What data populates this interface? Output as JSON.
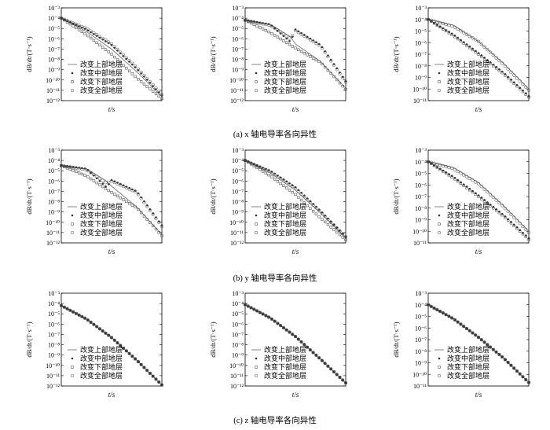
{
  "labels": {
    "xlabel": "t/s",
    "ylabel": "dB/dt/(T·s⁻¹)",
    "legend": [
      "改变上部地层",
      "改变中部地层",
      "改变下部地层",
      "改变全部地层"
    ]
  },
  "captions": [
    "(a) x 轴电导率各向异性",
    "(b) y 轴电导率各向异性",
    "(c) z 轴电导率各向异性"
  ],
  "chart_data": [
    {
      "type": "line",
      "subplot": "a1",
      "ylim_exp": [
        -12,
        -3
      ],
      "x_norm_points": [
        0,
        0.25,
        0.5,
        0.75,
        1
      ],
      "series": [
        {
          "values": [
            -4.0,
            -5.3,
            -7.0,
            -9.2,
            -11.6
          ]
        },
        {
          "values": [
            -4.0,
            -5.1,
            -6.6,
            -8.9,
            -11.5
          ]
        },
        {
          "values": [
            -4.0,
            -5.6,
            -7.5,
            -9.8,
            -11.8
          ]
        },
        {
          "values": [
            -4.0,
            -5.0,
            -6.5,
            -8.8,
            -11.4
          ]
        }
      ]
    },
    {
      "type": "line",
      "subplot": "a2",
      "ylim_exp": [
        -12,
        -3
      ],
      "x_norm_points": [
        0,
        0.25,
        0.45,
        0.5,
        0.75,
        1
      ],
      "series": [
        {
          "values": [
            -4.2,
            -4.6,
            -5.8,
            -6.5,
            -8.2,
            -10.8
          ]
        },
        {
          "values": [
            -4.2,
            -4.6,
            -6.3,
            -5.1,
            -6.6,
            -10.1
          ]
        },
        {
          "values": [
            -4.2,
            -5.4,
            -6.6,
            -6.9,
            -8.3,
            -10.9
          ]
        },
        {
          "values": [
            -4.2,
            -4.7,
            -6.0,
            -5.2,
            -6.7,
            -10.2
          ]
        }
      ]
    },
    {
      "type": "line",
      "subplot": "a3",
      "ylim_exp": [
        -11,
        -3
      ],
      "x_norm_points": [
        0,
        0.25,
        0.5,
        0.75,
        1
      ],
      "series": [
        {
          "values": [
            -4.0,
            -4.5,
            -5.9,
            -7.8,
            -10.0
          ]
        },
        {
          "values": [
            -4.0,
            -5.3,
            -6.9,
            -8.6,
            -10.6
          ]
        },
        {
          "values": [
            -4.0,
            -5.4,
            -7.0,
            -8.7,
            -10.7
          ]
        },
        {
          "values": [
            -4.0,
            -4.6,
            -5.9,
            -7.9,
            -10.1
          ]
        }
      ]
    },
    {
      "type": "line",
      "subplot": "b1",
      "ylim_exp": [
        -12,
        -3
      ],
      "x_norm_points": [
        0,
        0.25,
        0.45,
        0.5,
        0.75,
        1
      ],
      "series": [
        {
          "values": [
            -4.5,
            -4.8,
            -6.0,
            -6.5,
            -8.5,
            -11.2
          ]
        },
        {
          "values": [
            -4.5,
            -4.8,
            -6.6,
            -5.9,
            -7.0,
            -10.3
          ]
        },
        {
          "values": [
            -4.5,
            -5.5,
            -6.8,
            -7.1,
            -8.6,
            -11.3
          ]
        },
        {
          "values": [
            -4.5,
            -4.9,
            -6.2,
            -6.0,
            -7.1,
            -10.4
          ]
        }
      ]
    },
    {
      "type": "line",
      "subplot": "b2",
      "ylim_exp": [
        -12,
        -3
      ],
      "x_norm_points": [
        0,
        0.25,
        0.5,
        0.75,
        1
      ],
      "series": [
        {
          "values": [
            -4.0,
            -5.2,
            -6.9,
            -9.1,
            -11.5
          ]
        },
        {
          "values": [
            -4.0,
            -5.0,
            -6.6,
            -8.9,
            -11.4
          ]
        },
        {
          "values": [
            -4.0,
            -5.5,
            -7.3,
            -9.6,
            -11.7
          ]
        },
        {
          "values": [
            -4.0,
            -5.1,
            -6.7,
            -9.0,
            -11.4
          ]
        }
      ]
    },
    {
      "type": "line",
      "subplot": "b3",
      "ylim_exp": [
        -11,
        -3
      ],
      "x_norm_points": [
        0,
        0.25,
        0.5,
        0.75,
        1
      ],
      "series": [
        {
          "values": [
            -4.0,
            -4.5,
            -5.8,
            -7.8,
            -10.0
          ]
        },
        {
          "values": [
            -4.0,
            -5.3,
            -6.9,
            -8.6,
            -10.6
          ]
        },
        {
          "values": [
            -4.0,
            -5.4,
            -7.0,
            -8.7,
            -10.7
          ]
        },
        {
          "values": [
            -4.0,
            -4.6,
            -5.9,
            -7.9,
            -10.1
          ]
        }
      ]
    },
    {
      "type": "line",
      "subplot": "c1",
      "ylim_exp": [
        -12,
        -3
      ],
      "x_norm_points": [
        0,
        0.25,
        0.5,
        0.75,
        1
      ],
      "series": [
        {
          "values": [
            -4.2,
            -5.5,
            -7.3,
            -9.5,
            -11.9
          ]
        },
        {
          "values": [
            -4.2,
            -5.5,
            -7.3,
            -9.5,
            -11.9
          ]
        },
        {
          "values": [
            -4.2,
            -5.5,
            -7.3,
            -9.5,
            -11.9
          ]
        },
        {
          "values": [
            -4.2,
            -5.5,
            -7.3,
            -9.5,
            -11.9
          ]
        }
      ]
    },
    {
      "type": "line",
      "subplot": "c2",
      "ylim_exp": [
        -12,
        -3
      ],
      "x_norm_points": [
        0,
        0.25,
        0.5,
        0.75,
        1
      ],
      "series": [
        {
          "values": [
            -4.1,
            -5.4,
            -7.2,
            -9.4,
            -11.7
          ]
        },
        {
          "values": [
            -4.1,
            -5.4,
            -7.2,
            -9.4,
            -11.7
          ]
        },
        {
          "values": [
            -4.1,
            -5.4,
            -7.2,
            -9.4,
            -11.7
          ]
        },
        {
          "values": [
            -4.1,
            -5.4,
            -7.2,
            -9.4,
            -11.7
          ]
        }
      ]
    },
    {
      "type": "line",
      "subplot": "c3",
      "ylim_exp": [
        -11,
        -3
      ],
      "x_norm_points": [
        0,
        0.25,
        0.5,
        0.75,
        1
      ],
      "series": [
        {
          "values": [
            -4.0,
            -5.2,
            -6.8,
            -8.6,
            -10.7
          ]
        },
        {
          "values": [
            -4.0,
            -5.2,
            -6.8,
            -8.6,
            -10.7
          ]
        },
        {
          "values": [
            -4.0,
            -5.2,
            -6.8,
            -8.6,
            -10.7
          ]
        },
        {
          "values": [
            -4.0,
            -5.2,
            -6.8,
            -8.6,
            -10.7
          ]
        }
      ]
    }
  ]
}
